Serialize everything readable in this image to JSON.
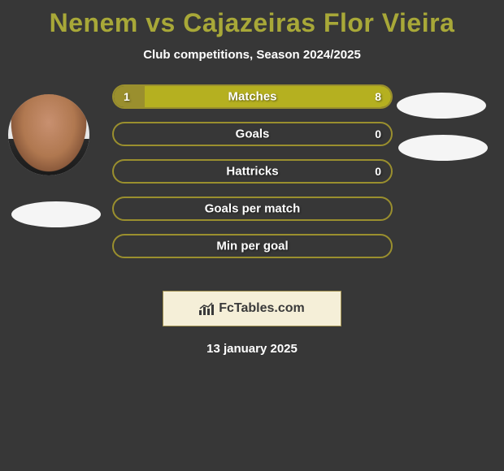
{
  "title_color": "#a8a838",
  "title": "Nenem vs Cajazeiras Flor Vieira",
  "subtitle": "Club competitions, Season 2024/2025",
  "left_player_color": "#9a8f2e",
  "right_player_color": "#b5b020",
  "background": "#373737",
  "stats": [
    {
      "label": "Matches",
      "left_value": "1",
      "right_value": "8",
      "left_pct": 11,
      "right_pct": 89
    },
    {
      "label": "Goals",
      "left_value": "",
      "right_value": "0",
      "left_pct": 0,
      "right_pct": 0
    },
    {
      "label": "Hattricks",
      "left_value": "",
      "right_value": "0",
      "left_pct": 0,
      "right_pct": 0
    },
    {
      "label": "Goals per match",
      "left_value": "",
      "right_value": "",
      "left_pct": 0,
      "right_pct": 0
    },
    {
      "label": "Min per goal",
      "left_value": "",
      "right_value": "",
      "left_pct": 0,
      "right_pct": 0
    }
  ],
  "logo_text": "FcTables.com",
  "date": "13 january 2025",
  "border_color": "#9a8f2e"
}
